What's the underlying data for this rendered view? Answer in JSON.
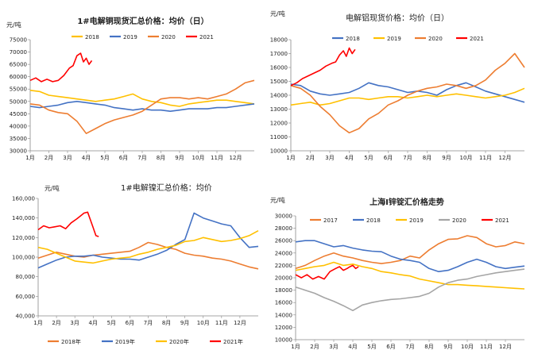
{
  "colors": {
    "s2017": "#ed7d31",
    "s2018": "#ed7d31",
    "s2019": "#4472c4",
    "s2020": "#ffc000",
    "s2021": "#ff0000",
    "grey2020": "#a5a5a5",
    "ni2018": "#ed7d31",
    "ni2019": "#4472c4",
    "ni2020": "#ffc000",
    "ni2021": "#ff0000"
  },
  "chart_data": [
    {
      "type": "line",
      "title": "1#电解铜现货汇总价格：均价（日）",
      "unit": "元/吨",
      "ylim": [
        30000,
        75000
      ],
      "yticks": [
        "30000",
        "35000",
        "40000",
        "45000",
        "50000",
        "55000",
        "60000",
        "65000",
        "70000",
        "75000"
      ],
      "xticks": [
        "1月",
        "2月",
        "3月",
        "4月",
        "5月",
        "6月",
        "7月",
        "8月",
        "9月",
        "10月",
        "11月",
        "12月"
      ],
      "legend": [
        "2018",
        "2019",
        "2020",
        "2021"
      ],
      "series": [
        {
          "name": "2018",
          "color": "#ffc000",
          "x": [
            0,
            0.5,
            1,
            1.5,
            2,
            2.5,
            3,
            3.5,
            4,
            4.5,
            5,
            5.5,
            6,
            6.5,
            7,
            7.5,
            8,
            8.5,
            9,
            9.5,
            10,
            10.5,
            11,
            11.5,
            12
          ],
          "values": [
            54500,
            54000,
            52500,
            52000,
            51500,
            51000,
            50500,
            50000,
            50500,
            51000,
            52000,
            53000,
            51000,
            50000,
            49500,
            48500,
            48000,
            49000,
            49500,
            50000,
            50500,
            50500,
            50000,
            49500,
            49000
          ]
        },
        {
          "name": "2019",
          "color": "#4472c4",
          "x": [
            0,
            0.5,
            1,
            1.5,
            2,
            2.5,
            3,
            3.5,
            4,
            4.5,
            5,
            5.5,
            6,
            6.5,
            7,
            7.5,
            8,
            8.5,
            9,
            9.5,
            10,
            10.5,
            11,
            11.5,
            12
          ],
          "values": [
            48000,
            47500,
            48000,
            48500,
            49500,
            50000,
            49500,
            49000,
            48500,
            47500,
            47000,
            46500,
            47000,
            46500,
            46500,
            46000,
            46500,
            47000,
            47000,
            47000,
            47500,
            47500,
            48000,
            48500,
            49000
          ]
        },
        {
          "name": "2020",
          "color": "#ed7d31",
          "x": [
            0,
            0.5,
            1,
            1.5,
            2,
            2.5,
            3,
            3.5,
            4,
            4.5,
            5,
            5.5,
            6,
            6.5,
            7,
            7.5,
            8,
            8.5,
            9,
            9.5,
            10,
            10.5,
            11,
            11.5,
            12
          ],
          "values": [
            49000,
            48500,
            46500,
            45500,
            45000,
            42000,
            37000,
            39000,
            41000,
            42500,
            43500,
            44500,
            46000,
            48500,
            51000,
            51500,
            51500,
            51000,
            51500,
            51000,
            52000,
            53000,
            55000,
            57500,
            58500
          ]
        },
        {
          "name": "2021",
          "color": "#ff0000",
          "x": [
            0,
            0.3,
            0.6,
            0.9,
            1.2,
            1.5,
            1.8,
            2.1,
            2.3,
            2.5,
            2.7,
            2.85,
            3.0,
            3.15,
            3.3
          ],
          "values": [
            58500,
            59500,
            58000,
            59000,
            58000,
            58500,
            60500,
            63500,
            64500,
            68500,
            69500,
            66000,
            67500,
            65000,
            66500
          ]
        }
      ]
    },
    {
      "type": "line",
      "title": "电解铝现货价格：均价（日）",
      "unit": "元/吨",
      "ylim": [
        10000,
        18000
      ],
      "yticks": [
        "10000",
        "11000",
        "12000",
        "13000",
        "14000",
        "15000",
        "16000",
        "17000",
        "18000"
      ],
      "xticks": [
        "1月",
        "2月",
        "3月",
        "4月",
        "5月",
        "6月",
        "7月",
        "8月",
        "9月",
        "10月",
        "11月",
        "12月"
      ],
      "legend": [
        "2018",
        "2019",
        "2020",
        "2021"
      ],
      "series": [
        {
          "name": "2018",
          "color": "#4472c4",
          "x": [
            0,
            0.5,
            1,
            1.5,
            2,
            2.5,
            3,
            3.5,
            4,
            4.5,
            5,
            5.5,
            6,
            6.5,
            7,
            7.5,
            8,
            8.5,
            9,
            9.5,
            10,
            10.5,
            11,
            11.5,
            12
          ],
          "values": [
            14800,
            14700,
            14300,
            14100,
            14000,
            14100,
            14200,
            14500,
            14900,
            14700,
            14600,
            14400,
            14200,
            14300,
            14200,
            14000,
            14400,
            14700,
            14900,
            14600,
            14300,
            14100,
            13900,
            13700,
            13500
          ]
        },
        {
          "name": "2019",
          "color": "#ffc000",
          "x": [
            0,
            0.5,
            1,
            1.5,
            2,
            2.5,
            3,
            3.5,
            4,
            4.5,
            5,
            5.5,
            6,
            6.5,
            7,
            7.5,
            8,
            8.5,
            9,
            9.5,
            10,
            10.5,
            11,
            11.5,
            12
          ],
          "values": [
            13300,
            13400,
            13500,
            13300,
            13400,
            13600,
            13800,
            13800,
            13700,
            13800,
            13900,
            13900,
            13800,
            13900,
            14000,
            13900,
            14000,
            14100,
            14000,
            13900,
            13800,
            13900,
            14000,
            14200,
            14500
          ]
        },
        {
          "name": "2020",
          "color": "#ed7d31",
          "x": [
            0,
            0.5,
            1,
            1.5,
            2,
            2.5,
            3,
            3.5,
            4,
            4.5,
            5,
            5.5,
            6,
            6.5,
            7,
            7.5,
            8,
            8.5,
            9,
            9.5,
            10,
            10.5,
            11,
            11.5,
            12
          ],
          "values": [
            14700,
            14500,
            14000,
            13200,
            12600,
            11800,
            11300,
            11600,
            12300,
            12700,
            13300,
            13600,
            14000,
            14300,
            14500,
            14600,
            14800,
            14700,
            14500,
            14700,
            15100,
            15800,
            16300,
            17000,
            16000
          ]
        },
        {
          "name": "2021",
          "color": "#ff0000",
          "x": [
            0,
            0.3,
            0.6,
            0.9,
            1.2,
            1.5,
            1.8,
            2.1,
            2.3,
            2.5,
            2.7,
            2.85,
            3.0,
            3.15,
            3.3
          ],
          "values": [
            14700,
            14900,
            15200,
            15400,
            15600,
            15800,
            16100,
            16300,
            16400,
            16900,
            17200,
            16800,
            17400,
            17000,
            17300
          ]
        }
      ]
    },
    {
      "type": "line",
      "title": "1#电解镍汇总价格：均价",
      "unit": "元/吨",
      "ylim": [
        40000,
        160000
      ],
      "yticks": [
        "40,000",
        "60,000",
        "80,000",
        "100,000",
        "120,000",
        "140,000",
        "160,000"
      ],
      "xticks": [
        "1月",
        "2月",
        "3月",
        "4月",
        "5月",
        "6月",
        "7月",
        "8月",
        "9月",
        "10月",
        "11月",
        "12月"
      ],
      "legend": [
        "2018年",
        "2019年",
        "2020年",
        "2021年"
      ],
      "series": [
        {
          "name": "2018年",
          "color": "#ed7d31",
          "x": [
            0,
            0.5,
            1,
            1.5,
            2,
            2.5,
            3,
            3.5,
            4,
            4.5,
            5,
            5.5,
            6,
            6.5,
            7,
            7.5,
            8,
            8.5,
            9,
            9.5,
            10,
            10.5,
            11,
            11.5,
            12
          ],
          "values": [
            99000,
            102000,
            105000,
            103000,
            101000,
            100000,
            102000,
            103000,
            104000,
            105000,
            106000,
            110000,
            115000,
            113000,
            110000,
            108000,
            104000,
            102000,
            101000,
            99000,
            98000,
            96000,
            93000,
            90000,
            88000
          ]
        },
        {
          "name": "2019年",
          "color": "#4472c4",
          "x": [
            0,
            0.5,
            1,
            1.5,
            2,
            2.5,
            3,
            3.5,
            4,
            4.5,
            5,
            5.5,
            6,
            6.5,
            7,
            7.5,
            8,
            8.5,
            9,
            9.5,
            10,
            10.5,
            11,
            11.5,
            12
          ],
          "values": [
            89000,
            93000,
            97000,
            100000,
            101000,
            101000,
            102000,
            100000,
            99000,
            98000,
            98000,
            97000,
            100000,
            103000,
            107000,
            113000,
            118000,
            145000,
            140000,
            137000,
            134000,
            132000,
            120000,
            110000,
            111000
          ]
        },
        {
          "name": "2020年",
          "color": "#ffc000",
          "x": [
            0,
            0.5,
            1,
            1.5,
            2,
            2.5,
            3,
            3.5,
            4,
            4.5,
            5,
            5.5,
            6,
            6.5,
            7,
            7.5,
            8,
            8.5,
            9,
            9.5,
            10,
            10.5,
            11,
            11.5,
            12
          ],
          "values": [
            110000,
            108000,
            104000,
            100000,
            96000,
            95000,
            94000,
            96000,
            98000,
            99000,
            100000,
            103000,
            105000,
            108000,
            110000,
            112000,
            116000,
            117000,
            120000,
            118000,
            116000,
            117000,
            119000,
            122000,
            127000
          ]
        },
        {
          "name": "2021年",
          "color": "#ff0000",
          "x": [
            0,
            0.3,
            0.6,
            0.9,
            1.2,
            1.5,
            1.8,
            2.1,
            2.3,
            2.5,
            2.7,
            2.85,
            3.0,
            3.15,
            3.3
          ],
          "values": [
            128000,
            132000,
            130000,
            131000,
            132000,
            129000,
            135000,
            139000,
            142000,
            145000,
            146000,
            138000,
            130000,
            122000,
            121000
          ]
        }
      ]
    },
    {
      "type": "line",
      "title": "上海Ⅰ锌锭汇价格走势",
      "unit": "元/吨",
      "ylim": [
        10000,
        30000
      ],
      "yticks": [
        "10000",
        "12000",
        "14000",
        "16000",
        "18000",
        "20000",
        "22000",
        "24000",
        "26000",
        "28000",
        "30000"
      ],
      "xticks": [
        "1月",
        "2月",
        "3月",
        "4月",
        "5月",
        "6月",
        "7月",
        "8月",
        "9月",
        "10月",
        "11月",
        "12月"
      ],
      "legend": [
        "2017",
        "2018",
        "2019",
        "2020",
        "2021"
      ],
      "series": [
        {
          "name": "2017",
          "color": "#ed7d31",
          "x": [
            0,
            0.5,
            1,
            1.5,
            2,
            2.5,
            3,
            3.5,
            4,
            4.5,
            5,
            5.5,
            6,
            6.5,
            7,
            7.5,
            8,
            8.5,
            9,
            9.5,
            10,
            10.5,
            11,
            11.5,
            12
          ],
          "values": [
            21500,
            22000,
            22800,
            23500,
            24000,
            23500,
            23200,
            22800,
            22500,
            22300,
            22500,
            22800,
            23500,
            23200,
            24500,
            25500,
            26200,
            26300,
            26800,
            26500,
            25500,
            25000,
            25200,
            25800,
            25500
          ]
        },
        {
          "name": "2018",
          "color": "#4472c4",
          "x": [
            0,
            0.5,
            1,
            1.5,
            2,
            2.5,
            3,
            3.5,
            4,
            4.5,
            5,
            5.5,
            6,
            6.5,
            7,
            7.5,
            8,
            8.5,
            9,
            9.5,
            10,
            10.5,
            11,
            11.5,
            12
          ],
          "values": [
            25800,
            26000,
            26000,
            25500,
            25000,
            25200,
            24800,
            24500,
            24300,
            24200,
            23500,
            23000,
            22800,
            22500,
            21500,
            21000,
            21200,
            21800,
            22500,
            23000,
            22500,
            21800,
            21500,
            21700,
            21900
          ]
        },
        {
          "name": "2019",
          "color": "#ffc000",
          "x": [
            0,
            0.5,
            1,
            1.5,
            2,
            2.5,
            3,
            3.5,
            4,
            4.5,
            5,
            5.5,
            6,
            6.5,
            7,
            7.5,
            8,
            8.5,
            9,
            9.5,
            10,
            10.5,
            11,
            11.5,
            12
          ],
          "values": [
            21200,
            21500,
            21800,
            22000,
            22500,
            22000,
            22200,
            21800,
            21500,
            21000,
            20800,
            20500,
            20300,
            19800,
            19500,
            19200,
            18900,
            18900,
            18800,
            18700,
            18600,
            18500,
            18400,
            18300,
            18200
          ]
        },
        {
          "name": "2020",
          "color": "#a5a5a5",
          "x": [
            0,
            0.5,
            1,
            1.5,
            2,
            2.5,
            3,
            3.5,
            4,
            4.5,
            5,
            5.5,
            6,
            6.5,
            7,
            7.5,
            8,
            8.5,
            9,
            9.5,
            10,
            10.5,
            11,
            11.5,
            12
          ],
          "values": [
            18500,
            18000,
            17500,
            16800,
            16200,
            15500,
            14700,
            15600,
            16000,
            16300,
            16500,
            16600,
            16800,
            17000,
            17500,
            18500,
            19200,
            19600,
            19800,
            20200,
            20500,
            20800,
            21000,
            21200,
            21400
          ]
        },
        {
          "name": "2021",
          "color": "#ff0000",
          "x": [
            0,
            0.3,
            0.6,
            0.9,
            1.2,
            1.5,
            1.8,
            2.1,
            2.3,
            2.5,
            2.7,
            2.85,
            3.0,
            3.15,
            3.3
          ],
          "values": [
            20500,
            20000,
            20500,
            19800,
            20200,
            19800,
            21000,
            21500,
            21800,
            21200,
            21500,
            21800,
            22000,
            21500,
            21800
          ]
        }
      ]
    }
  ]
}
